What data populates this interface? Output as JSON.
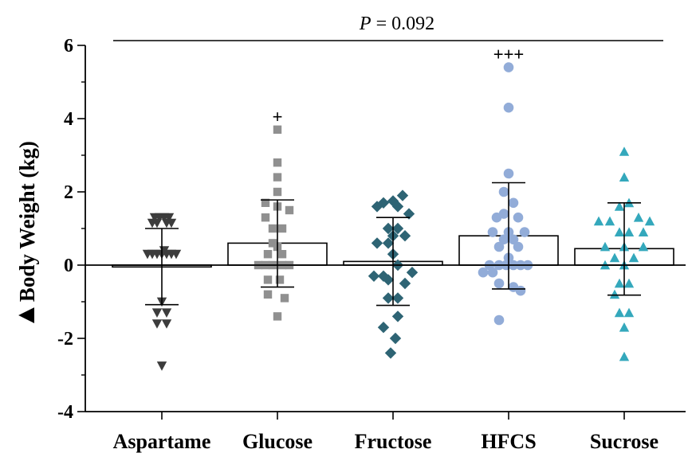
{
  "chart_data": {
    "type": "scatter",
    "title": "",
    "annotation": {
      "p_italic": "P",
      "p_rest": " = 0.092"
    },
    "ylabel": {
      "prefix": "▲",
      "text": "Body Weight (kg)"
    },
    "xlabel": "",
    "ylim": [
      -4,
      6
    ],
    "yticks": [
      "-4",
      "-2",
      "0",
      "2",
      "4",
      "6"
    ],
    "categories": [
      "Aspartame",
      "Glucose",
      "Fructose",
      "HFCS",
      "Sucrose"
    ],
    "series": [
      {
        "category": "Aspartame",
        "marker": "triangle-down",
        "color": "#3c3c3c",
        "mean": -0.05,
        "sd_upper": 1.0,
        "sd_lower": -1.08,
        "sig": "",
        "points": [
          {
            "dx": -0.09,
            "y": 1.3
          },
          {
            "dx": -0.03,
            "y": 1.3
          },
          {
            "dx": 0.03,
            "y": 1.3
          },
          {
            "dx": 0.09,
            "y": 1.3
          },
          {
            "dx": -0.12,
            "y": 1.15
          },
          {
            "dx": -0.06,
            "y": 1.15
          },
          {
            "dx": 0.06,
            "y": 1.15
          },
          {
            "dx": 0.12,
            "y": 1.15
          },
          {
            "dx": -0.18,
            "y": 0.3
          },
          {
            "dx": -0.12,
            "y": 0.3
          },
          {
            "dx": -0.06,
            "y": 0.3
          },
          {
            "dx": 0.0,
            "y": 0.3
          },
          {
            "dx": 0.06,
            "y": 0.3
          },
          {
            "dx": 0.12,
            "y": 0.3
          },
          {
            "dx": 0.18,
            "y": 0.3
          },
          {
            "dx": 0.03,
            "y": 0.4
          },
          {
            "dx": 0.0,
            "y": -1.0
          },
          {
            "dx": -0.06,
            "y": -1.3
          },
          {
            "dx": 0.06,
            "y": -1.3
          },
          {
            "dx": -0.06,
            "y": -1.6
          },
          {
            "dx": 0.06,
            "y": -1.6
          },
          {
            "dx": 0.0,
            "y": -2.75
          }
        ]
      },
      {
        "category": "Glucose",
        "marker": "square",
        "color": "#909090",
        "mean": 0.6,
        "sd_upper": 1.78,
        "sd_lower": -0.6,
        "sig": "+",
        "points": [
          {
            "dx": 0.0,
            "y": 3.7
          },
          {
            "dx": 0.0,
            "y": 2.8
          },
          {
            "dx": 0.0,
            "y": 2.4
          },
          {
            "dx": 0.0,
            "y": 2.0
          },
          {
            "dx": -0.15,
            "y": 1.7
          },
          {
            "dx": 0.0,
            "y": 1.6
          },
          {
            "dx": 0.15,
            "y": 1.5
          },
          {
            "dx": -0.15,
            "y": 1.3
          },
          {
            "dx": -0.06,
            "y": 1.0
          },
          {
            "dx": 0.06,
            "y": 1.0
          },
          {
            "dx": -0.06,
            "y": 0.6
          },
          {
            "dx": 0.0,
            "y": 0.5
          },
          {
            "dx": -0.12,
            "y": 0.3
          },
          {
            "dx": 0.06,
            "y": 0.3
          },
          {
            "dx": -0.24,
            "y": 0.0
          },
          {
            "dx": -0.15,
            "y": 0.0
          },
          {
            "dx": -0.06,
            "y": 0.0
          },
          {
            "dx": 0.06,
            "y": 0.0
          },
          {
            "dx": 0.15,
            "y": 0.0
          },
          {
            "dx": -0.12,
            "y": -0.4
          },
          {
            "dx": 0.03,
            "y": -0.4
          },
          {
            "dx": -0.12,
            "y": -0.8
          },
          {
            "dx": 0.09,
            "y": -0.9
          },
          {
            "dx": 0.0,
            "y": -1.4
          }
        ]
      },
      {
        "category": "Fructose",
        "marker": "diamond",
        "color": "#2e6474",
        "mean": 0.1,
        "sd_upper": 1.3,
        "sd_lower": -1.1,
        "sig": "",
        "points": [
          {
            "dx": 0.12,
            "y": 1.9
          },
          {
            "dx": -0.12,
            "y": 1.7
          },
          {
            "dx": 0.0,
            "y": 1.75
          },
          {
            "dx": 0.06,
            "y": 1.6
          },
          {
            "dx": -0.2,
            "y": 1.6
          },
          {
            "dx": 0.2,
            "y": 1.4
          },
          {
            "dx": -0.06,
            "y": 1.0
          },
          {
            "dx": 0.06,
            "y": 1.0
          },
          {
            "dx": 0.0,
            "y": 0.8
          },
          {
            "dx": 0.15,
            "y": 0.8
          },
          {
            "dx": -0.2,
            "y": 0.6
          },
          {
            "dx": -0.06,
            "y": 0.6
          },
          {
            "dx": 0.0,
            "y": 0.3
          },
          {
            "dx": 0.06,
            "y": 0.0
          },
          {
            "dx": -0.24,
            "y": -0.3
          },
          {
            "dx": -0.12,
            "y": -0.3
          },
          {
            "dx": 0.24,
            "y": -0.2
          },
          {
            "dx": -0.06,
            "y": -0.4
          },
          {
            "dx": 0.15,
            "y": -0.5
          },
          {
            "dx": -0.06,
            "y": -0.9
          },
          {
            "dx": 0.06,
            "y": -0.9
          },
          {
            "dx": -0.12,
            "y": -1.7
          },
          {
            "dx": 0.06,
            "y": -1.4
          },
          {
            "dx": 0.03,
            "y": -2.0
          },
          {
            "dx": -0.03,
            "y": -2.4
          }
        ]
      },
      {
        "category": "HFCS",
        "marker": "circle",
        "color": "#92acd8",
        "mean": 0.8,
        "sd_upper": 2.25,
        "sd_lower": -0.65,
        "sig": "+++",
        "points": [
          {
            "dx": 0.0,
            "y": 5.4
          },
          {
            "dx": 0.0,
            "y": 4.3
          },
          {
            "dx": 0.0,
            "y": 2.5
          },
          {
            "dx": -0.06,
            "y": 2.0
          },
          {
            "dx": 0.06,
            "y": 1.7
          },
          {
            "dx": -0.15,
            "y": 1.3
          },
          {
            "dx": -0.06,
            "y": 1.4
          },
          {
            "dx": 0.12,
            "y": 1.3
          },
          {
            "dx": -0.2,
            "y": 0.9
          },
          {
            "dx": 0.0,
            "y": 0.9
          },
          {
            "dx": 0.2,
            "y": 0.9
          },
          {
            "dx": -0.06,
            "y": 0.7
          },
          {
            "dx": 0.06,
            "y": 0.7
          },
          {
            "dx": -0.12,
            "y": 0.5
          },
          {
            "dx": 0.12,
            "y": 0.5
          },
          {
            "dx": 0.0,
            "y": 0.2
          },
          {
            "dx": -0.24,
            "y": 0.0
          },
          {
            "dx": -0.12,
            "y": 0.0
          },
          {
            "dx": -0.03,
            "y": 0.0
          },
          {
            "dx": 0.06,
            "y": 0.0
          },
          {
            "dx": 0.15,
            "y": 0.0
          },
          {
            "dx": 0.24,
            "y": 0.0
          },
          {
            "dx": -0.32,
            "y": -0.2
          },
          {
            "dx": -0.2,
            "y": -0.2
          },
          {
            "dx": -0.12,
            "y": -0.5
          },
          {
            "dx": 0.06,
            "y": -0.6
          },
          {
            "dx": 0.15,
            "y": -0.7
          },
          {
            "dx": -0.12,
            "y": -1.5
          }
        ]
      },
      {
        "category": "Sucrose",
        "marker": "triangle-up",
        "color": "#34a8bc",
        "mean": 0.45,
        "sd_upper": 1.7,
        "sd_lower": -0.82,
        "sig": "",
        "points": [
          {
            "dx": 0.0,
            "y": 3.1
          },
          {
            "dx": 0.0,
            "y": 2.4
          },
          {
            "dx": -0.06,
            "y": 1.6
          },
          {
            "dx": 0.06,
            "y": 1.7
          },
          {
            "dx": -0.32,
            "y": 1.2
          },
          {
            "dx": -0.18,
            "y": 1.2
          },
          {
            "dx": 0.18,
            "y": 1.3
          },
          {
            "dx": 0.32,
            "y": 1.2
          },
          {
            "dx": -0.06,
            "y": 0.9
          },
          {
            "dx": 0.06,
            "y": 0.9
          },
          {
            "dx": 0.24,
            "y": 0.9
          },
          {
            "dx": -0.24,
            "y": 0.5
          },
          {
            "dx": 0.0,
            "y": 0.5
          },
          {
            "dx": 0.24,
            "y": 0.5
          },
          {
            "dx": -0.12,
            "y": 0.2
          },
          {
            "dx": 0.12,
            "y": 0.2
          },
          {
            "dx": -0.24,
            "y": 0.0
          },
          {
            "dx": 0.0,
            "y": 0.0
          },
          {
            "dx": -0.06,
            "y": -0.5
          },
          {
            "dx": 0.06,
            "y": -0.5
          },
          {
            "dx": -0.12,
            "y": -0.8
          },
          {
            "dx": -0.06,
            "y": -1.3
          },
          {
            "dx": 0.06,
            "y": -1.3
          },
          {
            "dx": 0.0,
            "y": -1.7
          },
          {
            "dx": 0.0,
            "y": -2.5
          }
        ]
      }
    ]
  }
}
